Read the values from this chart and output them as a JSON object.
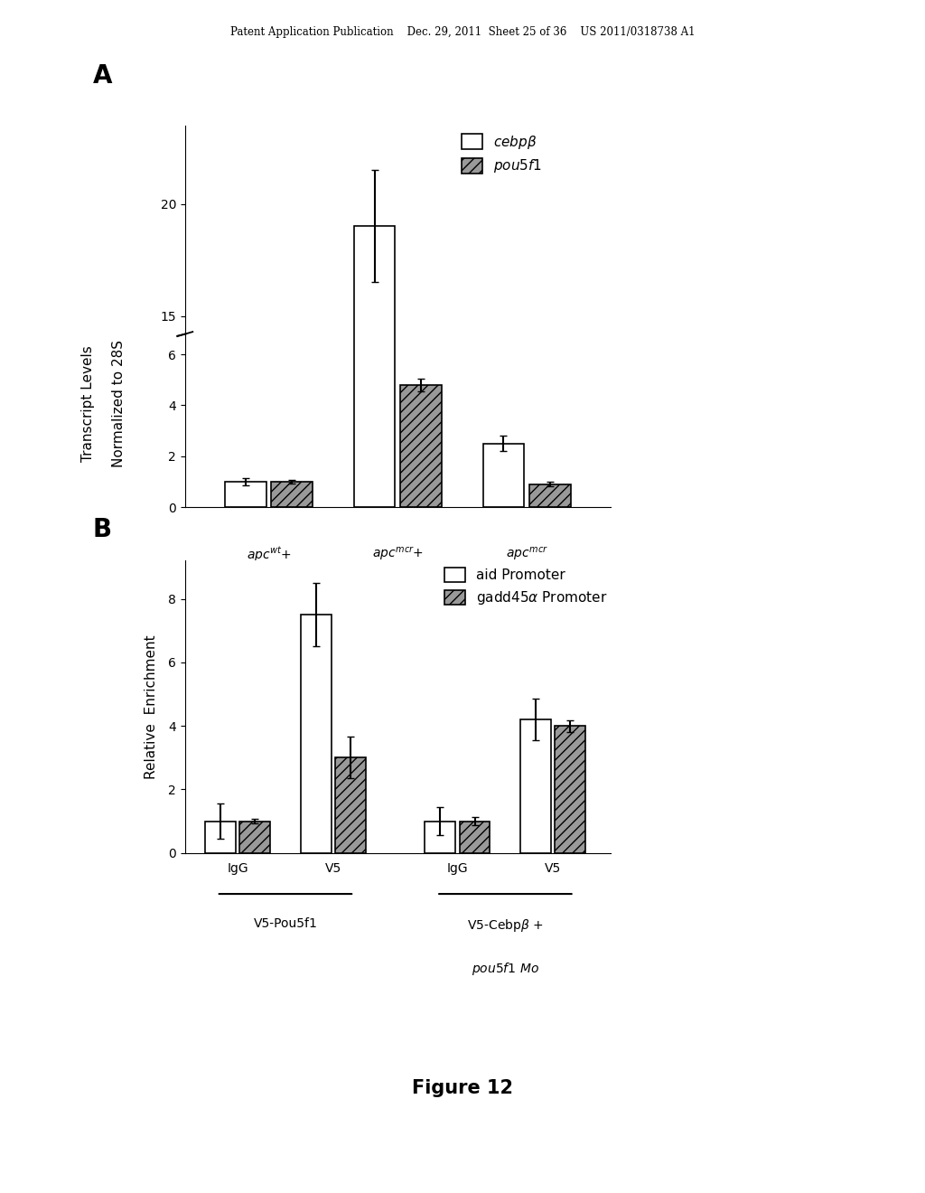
{
  "panel_A": {
    "ylabel_line1": "Transcript Levels",
    "ylabel_line2": "Normalized to 28S",
    "cebpb_values": [
      1.0,
      19.0,
      2.5
    ],
    "pou5f1_values": [
      1.0,
      4.8,
      0.9
    ],
    "cebpb_errors": [
      0.15,
      2.5,
      0.3
    ],
    "pou5f1_errors": [
      0.08,
      0.25,
      0.1
    ],
    "bar_color_white": "#ffffff",
    "bar_color_gray": "#999999",
    "bar_hatch_gray": "///",
    "ylim_lower": [
      0,
      6.8
    ],
    "ylim_upper": [
      14.2,
      23.5
    ],
    "yticks_lower": [
      0,
      2,
      4,
      6
    ],
    "yticks_upper": [
      15,
      20
    ]
  },
  "panel_B": {
    "ylabel": "Relative  Enrichment",
    "aid_values": [
      1.0,
      7.5,
      1.0,
      4.2
    ],
    "gadd45a_values": [
      1.0,
      3.0,
      1.0,
      4.0
    ],
    "aid_errors": [
      0.55,
      1.0,
      0.45,
      0.65
    ],
    "gadd45a_errors": [
      0.08,
      0.65,
      0.12,
      0.18
    ],
    "bar_color_white": "#ffffff",
    "bar_color_gray": "#999999",
    "bar_hatch_gray": "///",
    "ylim": [
      0,
      9.2
    ],
    "yticks": [
      0,
      2,
      4,
      6,
      8
    ],
    "figure_label": "Figure 12"
  },
  "header_text": "Patent Application Publication    Dec. 29, 2011  Sheet 25 of 36    US 2011/0318738 A1",
  "bg_color": "#ffffff"
}
